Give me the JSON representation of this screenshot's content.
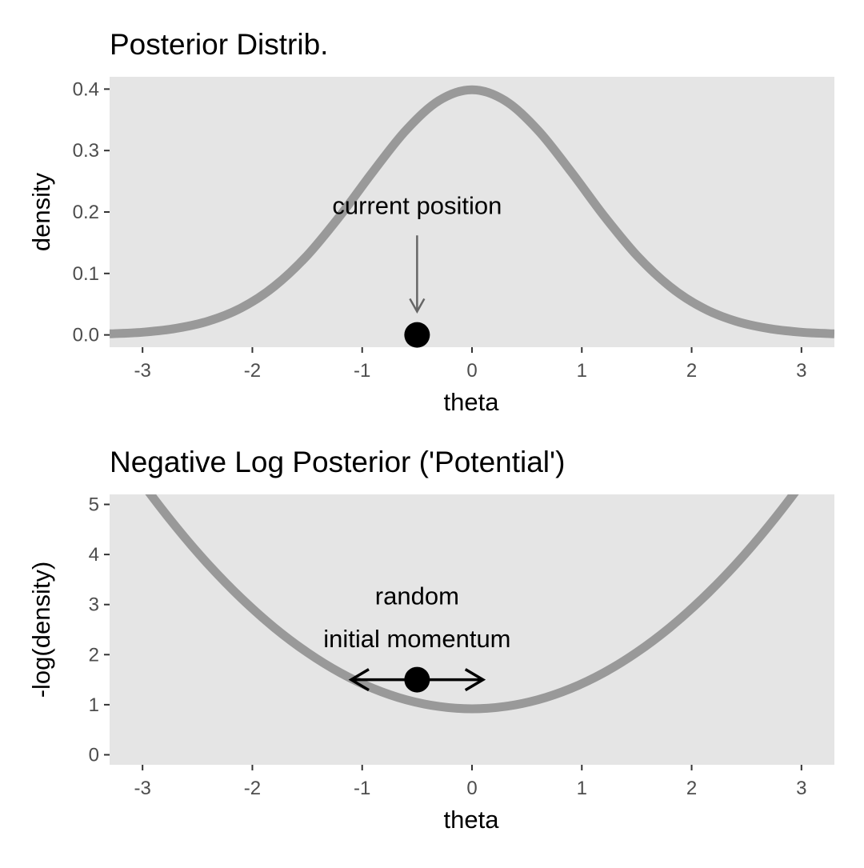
{
  "chart_data": [
    {
      "type": "line",
      "title": "Posterior Distrib.",
      "xlabel": "theta",
      "ylabel": "density",
      "xlim": [
        -3.3,
        3.3
      ],
      "ylim": [
        -0.02,
        0.42
      ],
      "xticks": [
        -3,
        -2,
        -1,
        0,
        1,
        2,
        3
      ],
      "xtick_labels": [
        "-3",
        "-2",
        "-1",
        "0",
        "1",
        "2",
        "3"
      ],
      "yticks": [
        0,
        0.1,
        0.2,
        0.3,
        0.4
      ],
      "ytick_labels": [
        "0.0",
        "0.1",
        "0.2",
        "0.3",
        "0.4"
      ],
      "grid": false,
      "panel_background": "#e5e5e5",
      "curve_color": "#999999",
      "series": [
        {
          "x": [
            -3.3,
            -3.0,
            -2.7,
            -2.4,
            -2.1,
            -1.8,
            -1.5,
            -1.2,
            -0.9,
            -0.6,
            -0.3,
            0.0,
            0.3,
            0.6,
            0.9,
            1.2,
            1.5,
            1.8,
            2.1,
            2.4,
            2.7,
            3.0,
            3.3
          ],
          "y": [
            0.0017,
            0.0044,
            0.0104,
            0.0224,
            0.044,
            0.079,
            0.1295,
            0.1942,
            0.2661,
            0.3332,
            0.3814,
            0.3989,
            0.3814,
            0.3332,
            0.2661,
            0.1942,
            0.1295,
            0.079,
            0.044,
            0.0224,
            0.0104,
            0.0044,
            0.0017
          ]
        }
      ],
      "point": {
        "x": -0.5,
        "y": 0.0
      },
      "annotation": {
        "text": "current position",
        "text_x": -0.5,
        "text_y": 0.197,
        "arrow_from": [
          -0.5,
          0.162
        ],
        "arrow_to": [
          -0.5,
          0.038
        ]
      }
    },
    {
      "type": "line",
      "title": "Negative Log Posterior ('Potential')",
      "xlabel": "theta",
      "ylabel": "-log(density)",
      "xlim": [
        -3.3,
        3.3
      ],
      "ylim": [
        -0.2,
        5.2
      ],
      "xticks": [
        -3,
        -2,
        -1,
        0,
        1,
        2,
        3
      ],
      "xtick_labels": [
        "-3",
        "-2",
        "-1",
        "0",
        "1",
        "2",
        "3"
      ],
      "yticks": [
        0,
        1,
        2,
        3,
        4,
        5
      ],
      "ytick_labels": [
        "0",
        "1",
        "2",
        "3",
        "4",
        "5"
      ],
      "grid": false,
      "panel_background": "#e5e5e5",
      "curve_color": "#999999",
      "series": [
        {
          "x": [
            -3.3,
            -3.0,
            -2.7,
            -2.4,
            -2.1,
            -1.8,
            -1.5,
            -1.2,
            -0.9,
            -0.6,
            -0.3,
            0.0,
            0.3,
            0.6,
            0.9,
            1.2,
            1.5,
            1.8,
            2.1,
            2.4,
            2.7,
            3.0,
            3.3
          ],
          "y": [
            6.364,
            5.419,
            4.564,
            3.799,
            3.124,
            2.539,
            2.044,
            1.639,
            1.324,
            1.099,
            0.964,
            0.919,
            0.964,
            1.099,
            1.324,
            1.639,
            2.044,
            2.539,
            3.124,
            3.799,
            4.564,
            5.419,
            6.364
          ]
        }
      ],
      "point": {
        "x": -0.5,
        "y": 1.5
      },
      "annotation": {
        "lines": [
          "random",
          "initial momentum"
        ],
        "text_x": -0.5,
        "text_y": [
          3.0,
          2.15
        ],
        "arrow_from": [
          -0.5,
          1.5
        ],
        "arrow_left_to": [
          -1.1,
          1.5
        ],
        "arrow_right_to": [
          0.1,
          1.5
        ]
      }
    }
  ]
}
